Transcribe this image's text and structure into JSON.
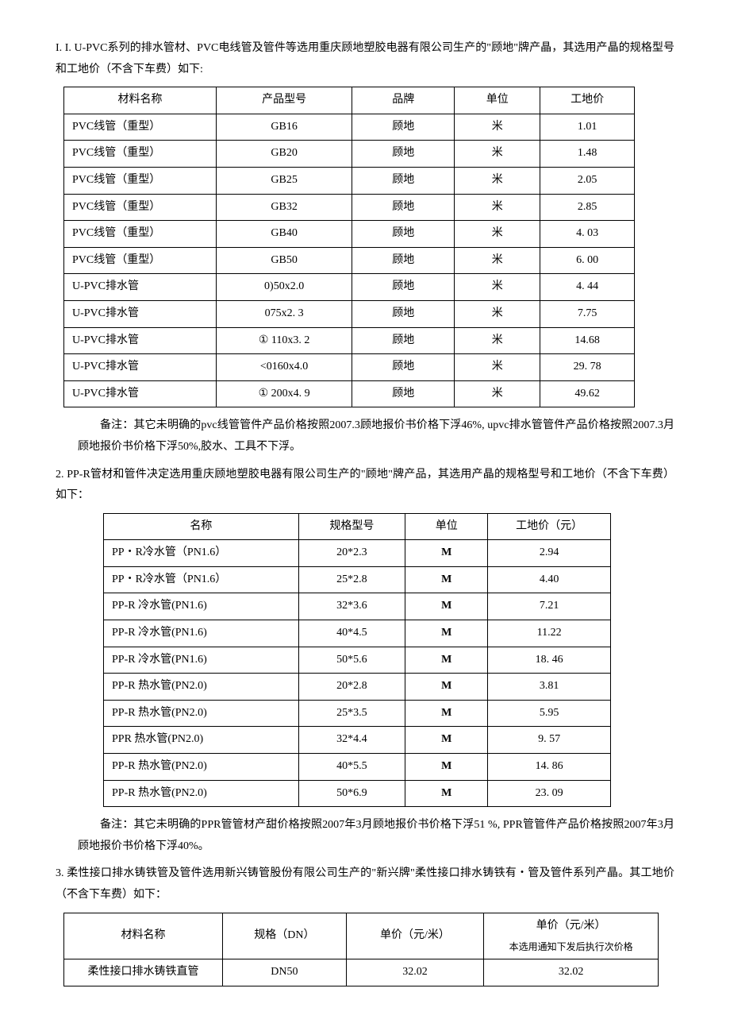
{
  "p1": "I.  I. U-PVC系列的排水管材、PVC电线管及管件等选用重庆顾地塑胶电器有限公司生产的\"顾地\"牌产晶，其选用产晶的规格型号和工地价（不含下车费）如下:",
  "t1": {
    "headers": [
      "材料名称",
      "产品型号",
      "品牌",
      "单位",
      "工地价"
    ],
    "rows": [
      [
        "PVC线管（重型）",
        "GB16",
        "顾地",
        "米",
        "1.01"
      ],
      [
        "PVC线管（重型）",
        "GB20",
        "顾地",
        "米",
        "1.48"
      ],
      [
        "PVC线管（重型）",
        "GB25",
        "顾地",
        "米",
        "2.05"
      ],
      [
        "PVC线管（重型）",
        "GB32",
        "顾地",
        "米",
        "2.85"
      ],
      [
        "PVC线管（重型）",
        "GB40",
        "顾地",
        "米",
        "4. 03"
      ],
      [
        "PVC线管（重型）",
        "GB50",
        "顾地",
        "米",
        "6. 00"
      ],
      [
        "U-PVC排水管",
        "0)50x2.0",
        "顾地",
        "米",
        "4. 44"
      ],
      [
        "U-PVC排水管",
        "075x2. 3",
        "顾地",
        "米",
        "7.75"
      ],
      [
        "U-PVC排水管",
        "① 110x3. 2",
        "顾地",
        "米",
        "14.68"
      ],
      [
        "U-PVC排水管",
        "<0160x4.0",
        "顾地",
        "米",
        "29. 78"
      ],
      [
        "U-PVC排水管",
        "① 200x4. 9",
        "顾地",
        "米",
        "49.62"
      ]
    ],
    "colwidths": [
      "170px",
      "150px",
      "110px",
      "90px",
      "100px"
    ]
  },
  "p2": "备注：其它未明确的pvc线管管件产品价格按照2007.3顾地报价书价格下浮46%, upvc排水管管件产品价格按照2007.3月顾地报价书价格下浮50%,胶水、工具不下浮。",
  "p3": "2. PP-R管材和管件决定选用重庆顾地塑胶电器有限公司生产的\"顾地\"牌产品，其选用产晶的规格型号和工地价（不含下车费）如下：",
  "t2": {
    "headers": [
      "名称",
      "规格型号",
      "单位",
      "工地价（元）"
    ],
    "rows": [
      [
        "PP・R冷水管（PN1.6）",
        "20*2.3",
        "M",
        "2.94"
      ],
      [
        "PP・R冷水管（PN1.6）",
        "25*2.8",
        "M",
        "4.40"
      ],
      [
        "PP-R 冷水管(PN1.6)",
        "32*3.6",
        "M",
        "7.21"
      ],
      [
        "PP-R 冷水管(PN1.6)",
        "40*4.5",
        "M",
        "11.22"
      ],
      [
        "PP-R 冷水管(PN1.6)",
        "50*5.6",
        "M",
        "18. 46"
      ],
      [
        "PP-R 热水管(PN2.0)",
        "20*2.8",
        "M",
        "3.81"
      ],
      [
        "PP-R 热水管(PN2.0)",
        "25*3.5",
        "M",
        "5.95"
      ],
      [
        "PPR 热水管(PN2.0)",
        "32*4.4",
        "M",
        "9. 57"
      ],
      [
        "PP-R 热水管(PN2.0)",
        "40*5.5",
        "M",
        "14. 86"
      ],
      [
        "PP-R 热水管(PN2.0)",
        "50*6.9",
        "M",
        "23. 09"
      ]
    ],
    "colwidths": [
      "230px",
      "120px",
      "90px",
      "140px"
    ]
  },
  "p4": "备注：其它未明确的PPR管管材产甜价格按照2007年3月顾地报价书价格下浮51 %, PPR管管件产品价格按照2007年3月顾地报价书价格下浮40%。",
  "p5": "3. 柔性接口排水铸铁管及管件选用新兴铸管股份有限公司生产的\"新兴牌\"柔性接口排水铸铁有・管及管件系列产晶。其工地价（不含下车费）如下：",
  "t3": {
    "headers": [
      "材料名称",
      "规格（DN）",
      "单价（元/米）",
      "单价（元/米）"
    ],
    "hsub": [
      "",
      "",
      "",
      "本选用通知下发后执行次价格"
    ],
    "rows": [
      [
        "柔性接口排水铸铁直管",
        "DN50",
        "32.02",
        "32.02"
      ]
    ],
    "colwidths": [
      "200px",
      "150px",
      "170px",
      "220px"
    ]
  }
}
